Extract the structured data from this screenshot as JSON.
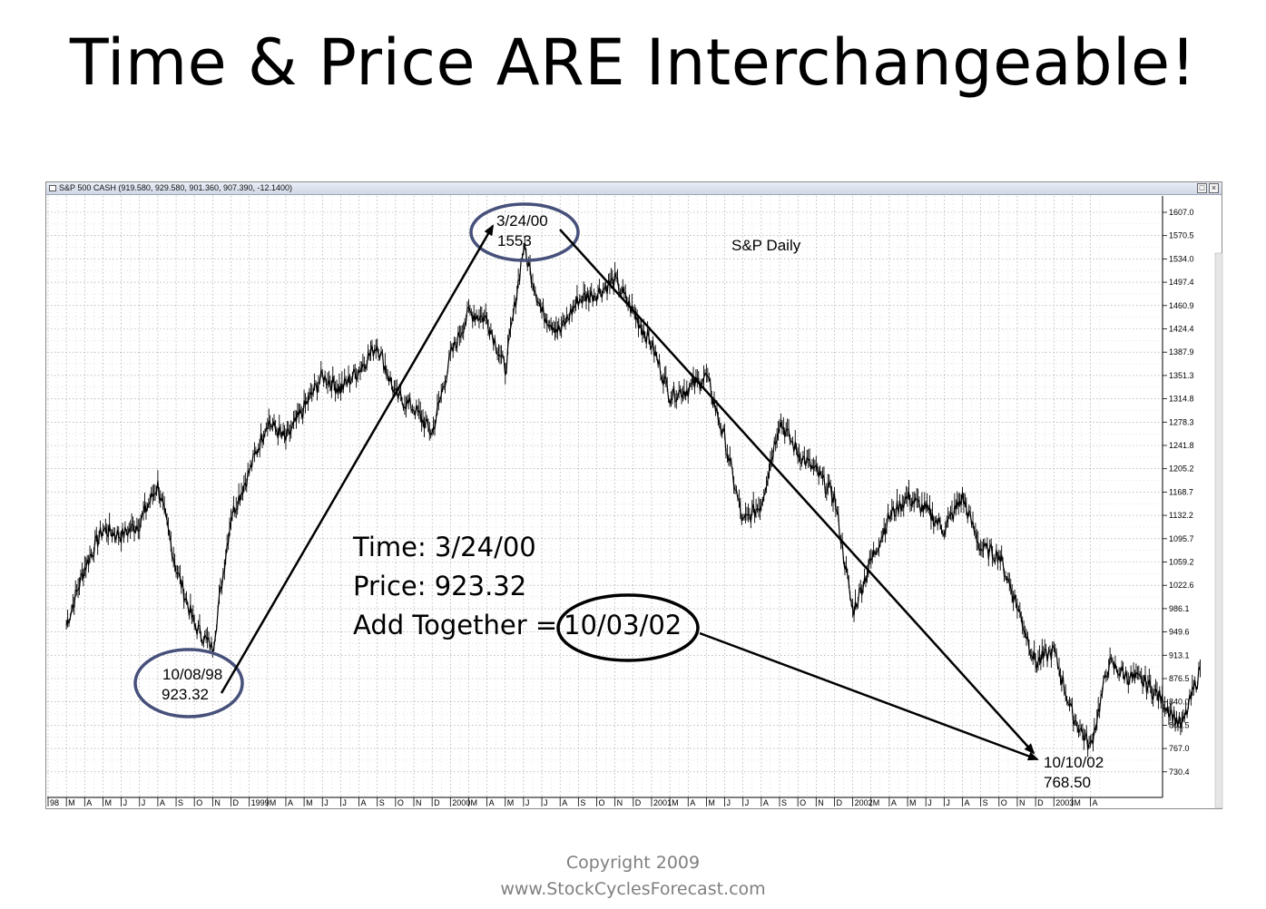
{
  "title": "Time & Price ARE Interchangeable!",
  "window": {
    "caption": "S&P 500 CASH (919.580, 929.580, 901.360, 907.390, -12.1400)",
    "restore_icon": "restore-icon",
    "close_icon": "close-icon"
  },
  "footer": {
    "line1": "Copyright 2009",
    "line2": "www.StockCyclesForecast.com"
  },
  "chart_data": {
    "type": "line",
    "subtitle": "S&P Daily",
    "y_ticks": [
      "1607.0",
      "1570.5",
      "1534.0",
      "1497.4",
      "1460.9",
      "1424.4",
      "1387.9",
      "1351.3",
      "1314.8",
      "1278.3",
      "1241.8",
      "1205.2",
      "1168.7",
      "1132.2",
      "1095.7",
      "1059.2",
      "1022.6",
      "986.1",
      "949.6",
      "913.1",
      "876.5",
      "840.0",
      "803.5",
      "767.0",
      "730.4"
    ],
    "ylim": [
      700,
      1625
    ],
    "x_ticks": [
      "98",
      "M",
      "A",
      "M",
      "J",
      "J",
      "A",
      "S",
      "O",
      "N",
      "D",
      "1999",
      "M",
      "A",
      "M",
      "J",
      "J",
      "A",
      "S",
      "O",
      "N",
      "D",
      "2000",
      "M",
      "A",
      "M",
      "J",
      "J",
      "A",
      "S",
      "O",
      "N",
      "D",
      "2001",
      "M",
      "A",
      "M",
      "J",
      "J",
      "A",
      "S",
      "O",
      "N",
      "D",
      "2002",
      "M",
      "A",
      "M",
      "J",
      "J",
      "A",
      "S",
      "O",
      "N",
      "D",
      "2003",
      "M",
      "A"
    ],
    "grid": true,
    "series": [
      {
        "x": [
          "1998-02",
          "1998-03",
          "1998-04",
          "1998-05",
          "1998-06",
          "1998-07",
          "1998-08",
          "1998-09",
          "1998-10",
          "1998-11",
          "1998-12",
          "1999-01",
          "1999-02",
          "1999-03",
          "1999-04",
          "1999-05",
          "1999-06",
          "1999-07",
          "1999-08",
          "1999-09",
          "1999-10",
          "1999-11",
          "1999-12",
          "2000-01",
          "2000-02",
          "2000-03",
          "2000-04",
          "2000-05",
          "2000-06",
          "2000-07",
          "2000-08",
          "2000-09",
          "2000-10",
          "2000-11",
          "2000-12",
          "2001-01",
          "2001-02",
          "2001-03",
          "2001-04",
          "2001-05",
          "2001-06",
          "2001-07",
          "2001-08",
          "2001-09",
          "2001-10",
          "2001-11",
          "2001-12",
          "2002-01",
          "2002-02",
          "2002-03",
          "2002-04",
          "2002-05",
          "2002-06",
          "2002-07",
          "2002-08",
          "2002-09",
          "2002-10",
          "2002-11",
          "2002-12",
          "2003-01",
          "2003-02",
          "2003-03",
          "2003-04"
        ],
        "values": [
          960,
          1050,
          1110,
          1100,
          1120,
          1180,
          1050,
          960,
          923,
          1130,
          1200,
          1280,
          1250,
          1300,
          1350,
          1330,
          1360,
          1400,
          1320,
          1300,
          1260,
          1380,
          1450,
          1440,
          1360,
          1553,
          1450,
          1420,
          1470,
          1480,
          1500,
          1450,
          1400,
          1320,
          1330,
          1350,
          1250,
          1120,
          1150,
          1280,
          1230,
          1200,
          1160,
          980,
          1060,
          1130,
          1160,
          1140,
          1110,
          1160,
          1080,
          1070,
          990,
          900,
          920,
          820,
          768,
          900,
          880,
          870,
          840,
          800,
          890
        ]
      }
    ],
    "annotations": {
      "low_1998": {
        "date": "10/08/98",
        "price": "923.32"
      },
      "high_2000": {
        "date": "3/24/00",
        "price": "1553"
      },
      "low_2002": {
        "date": "10/10/02",
        "price": "768.50"
      },
      "calc": {
        "line1": "Time: 3/24/00",
        "line2": "Price: 923.32",
        "line3_prefix": "Add Together =",
        "result": "10/03/02"
      }
    }
  }
}
